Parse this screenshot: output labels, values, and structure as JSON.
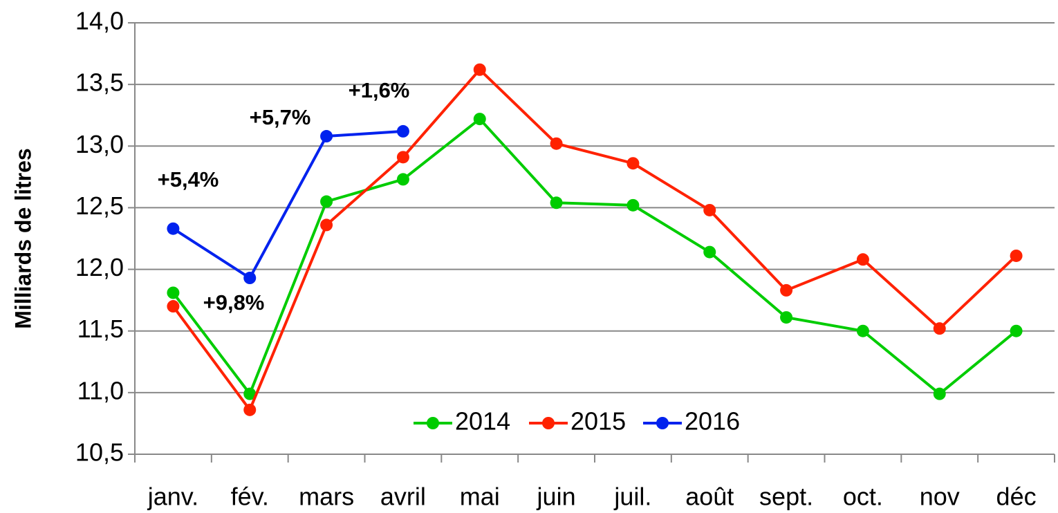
{
  "chart_data": {
    "type": "line",
    "y_label": "Milliards de litres",
    "categories": [
      "janv.",
      "fév.",
      "mars",
      "avril",
      "mai",
      "juin",
      "juil.",
      "août",
      "sept.",
      "oct.",
      "nov",
      "déc"
    ],
    "series": [
      {
        "name": "2014",
        "color": "#00cc00",
        "values": [
          11.81,
          10.99,
          12.55,
          12.73,
          13.22,
          12.54,
          12.52,
          12.14,
          11.61,
          11.5,
          10.99,
          11.5
        ]
      },
      {
        "name": "2015",
        "color": "#ff2200",
        "values": [
          11.7,
          10.86,
          12.36,
          12.91,
          13.62,
          13.02,
          12.86,
          12.48,
          11.83,
          12.08,
          11.52,
          12.11
        ]
      },
      {
        "name": "2016",
        "color": "#0022ee",
        "values": [
          12.33,
          11.93,
          13.08,
          13.12,
          null,
          null,
          null,
          null,
          null,
          null,
          null,
          null
        ]
      }
    ],
    "annotations": [
      "+5,4%",
      "+9,8%",
      "+5,7%",
      "+1,6%"
    ],
    "ylim": [
      10.5,
      14.0
    ],
    "yticks": [
      {
        "value": 10.5,
        "label": "10,5"
      },
      {
        "value": 11.0,
        "label": "11,0"
      },
      {
        "value": 11.5,
        "label": "11,5"
      },
      {
        "value": 12.0,
        "label": "12,0"
      },
      {
        "value": 12.5,
        "label": "12,5"
      },
      {
        "value": 13.0,
        "label": "13,0"
      },
      {
        "value": 13.5,
        "label": "13,5"
      },
      {
        "value": 14.0,
        "label": "14,0"
      }
    ],
    "grid": true,
    "legend": "bottom"
  }
}
